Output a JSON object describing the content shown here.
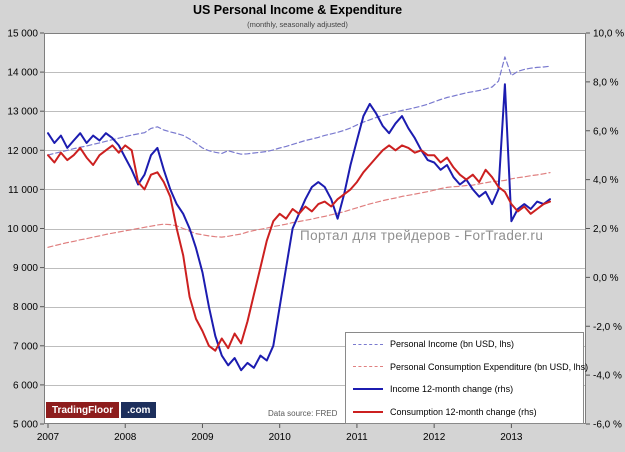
{
  "title": "US Personal Income & Expenditure",
  "subtitle": "(monthly, seasonally adjusted)",
  "watermark": "Портал для трейдеров - ForTrader.ru",
  "datasource_label": "Data source: FRED",
  "branding": {
    "logo_primary": "TradingFloor",
    "logo_suffix": ".com",
    "logo_primary_bg": "#8e1d1d",
    "logo_suffix_bg": "#1d2f5c"
  },
  "chart_data": {
    "type": "line",
    "title": "US Personal Income & Expenditure",
    "subtitle": "(monthly, seasonally adjusted)",
    "grid": "horizontal",
    "legend_position": "inside bottom-right",
    "x_axis": {
      "start_year": 2007,
      "frequency": "monthly",
      "ticks": [
        "2007",
        "2008",
        "2009",
        "2010",
        "2011",
        "2012",
        "2013"
      ]
    },
    "left_axis": {
      "min": 5000,
      "max": 15000,
      "tick_values": [
        15000,
        14000,
        13000,
        12000,
        11000,
        10000,
        9000,
        8000,
        7000,
        6000,
        5000
      ],
      "tick_labels": [
        "15 000",
        "14 000",
        "13 000",
        "12 000",
        "11 000",
        "10 000",
        "9 000",
        "8 000",
        "7 000",
        "6 000",
        "5 000"
      ]
    },
    "right_axis": {
      "min": -6,
      "max": 10,
      "tick_values": [
        10,
        8,
        6,
        4,
        2,
        0,
        -2,
        -4,
        -6
      ],
      "tick_labels": [
        "10,0 %",
        "8,0 %",
        "6,0 %",
        "4,0 %",
        "2,0 %",
        "0,0 %",
        "-2,0 %",
        "-4,0 %",
        "-6,0 %"
      ]
    },
    "series": [
      {
        "name": "Personal Income (bn USD, lhs)",
        "axis": "left",
        "style": "dashed",
        "color": "#7a7acf",
        "width": 1.2,
        "values": [
          11880,
          11920,
          11960,
          12000,
          12040,
          12080,
          12110,
          12150,
          12190,
          12230,
          12270,
          12310,
          12350,
          12390,
          12420,
          12450,
          12560,
          12600,
          12520,
          12470,
          12430,
          12380,
          12290,
          12180,
          12060,
          11990,
          11950,
          11920,
          11990,
          11940,
          11900,
          11910,
          11930,
          11950,
          11970,
          12010,
          12060,
          12100,
          12150,
          12200,
          12250,
          12290,
          12330,
          12380,
          12420,
          12460,
          12510,
          12570,
          12650,
          12720,
          12780,
          12840,
          12890,
          12930,
          12980,
          13020,
          13050,
          13090,
          13130,
          13180,
          13240,
          13300,
          13350,
          13390,
          13430,
          13470,
          13500,
          13530,
          13570,
          13620,
          13770,
          14390,
          13910,
          14020,
          14070,
          14100,
          14120,
          14130,
          14150
        ]
      },
      {
        "name": "Personal Consumption Expenditure (bn USD, lhs)",
        "axis": "left",
        "style": "dashed",
        "color": "#e08080",
        "width": 1.2,
        "values": [
          9520,
          9560,
          9600,
          9640,
          9670,
          9710,
          9740,
          9780,
          9810,
          9850,
          9880,
          9910,
          9940,
          9970,
          10000,
          10030,
          10060,
          10090,
          10110,
          10100,
          10070,
          10000,
          9930,
          9870,
          9840,
          9810,
          9790,
          9780,
          9800,
          9830,
          9860,
          9910,
          9950,
          9980,
          10010,
          10050,
          10080,
          10110,
          10150,
          10180,
          10210,
          10240,
          10280,
          10310,
          10350,
          10390,
          10430,
          10480,
          10530,
          10580,
          10630,
          10670,
          10710,
          10750,
          10780,
          10820,
          10850,
          10880,
          10910,
          10940,
          10980,
          11020,
          11050,
          11070,
          11080,
          11100,
          11110,
          11140,
          11170,
          11200,
          11210,
          11230,
          11270,
          11300,
          11320,
          11350,
          11370,
          11400,
          11430
        ]
      },
      {
        "name": "Income 12-month change (rhs)",
        "axis": "right",
        "style": "solid",
        "color": "#1c1cb0",
        "width": 2,
        "values": [
          5.9,
          5.5,
          5.8,
          5.3,
          5.6,
          5.9,
          5.5,
          5.8,
          5.6,
          5.9,
          5.7,
          5.4,
          4.9,
          4.4,
          3.8,
          4.2,
          5.0,
          5.3,
          4.4,
          3.6,
          3.0,
          2.6,
          2.0,
          1.2,
          0.2,
          -1.2,
          -2.4,
          -3.2,
          -3.6,
          -3.3,
          -3.8,
          -3.5,
          -3.7,
          -3.2,
          -3.4,
          -2.8,
          -1.2,
          0.4,
          2.0,
          2.6,
          3.2,
          3.7,
          3.9,
          3.7,
          3.2,
          2.4,
          3.4,
          4.6,
          5.6,
          6.6,
          7.1,
          6.7,
          6.2,
          5.9,
          6.3,
          6.6,
          6.1,
          5.7,
          5.2,
          4.8,
          4.7,
          4.4,
          4.6,
          4.1,
          3.8,
          4.0,
          3.6,
          3.3,
          3.5,
          3.0,
          3.6,
          7.9,
          2.3,
          2.8,
          3.0,
          2.8,
          3.1,
          3.0,
          3.2
        ]
      },
      {
        "name": "Consumption 12-month change (rhs)",
        "axis": "right",
        "style": "solid",
        "color": "#cc2020",
        "width": 2,
        "values": [
          5.0,
          4.7,
          5.1,
          4.8,
          5.0,
          5.3,
          4.9,
          4.6,
          5.0,
          5.2,
          5.4,
          5.1,
          5.4,
          5.2,
          3.9,
          3.6,
          4.2,
          4.3,
          3.9,
          3.3,
          2.0,
          0.9,
          -0.8,
          -1.7,
          -2.2,
          -2.8,
          -3.0,
          -2.5,
          -2.9,
          -2.3,
          -2.7,
          -1.8,
          -0.7,
          0.4,
          1.5,
          2.3,
          2.6,
          2.4,
          2.8,
          2.6,
          2.9,
          2.7,
          3.0,
          3.1,
          2.9,
          3.2,
          3.4,
          3.6,
          3.9,
          4.3,
          4.6,
          4.9,
          5.2,
          5.4,
          5.2,
          5.4,
          5.3,
          5.1,
          5.2,
          5.0,
          5.0,
          4.7,
          4.9,
          4.5,
          4.2,
          4.0,
          4.2,
          3.9,
          4.4,
          4.1,
          3.7,
          3.5,
          3.0,
          2.7,
          2.9,
          2.6,
          2.8,
          3.0,
          3.1
        ]
      }
    ]
  }
}
